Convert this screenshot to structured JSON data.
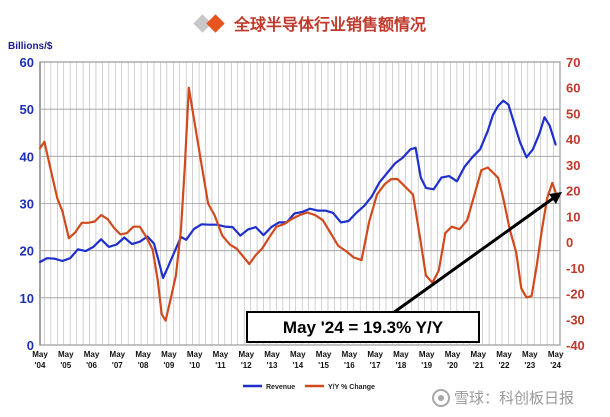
{
  "header": {
    "title": "全球半导体行业销售额情况",
    "colors": {
      "grey": "#c8c8c8",
      "orange": "#e8541f"
    }
  },
  "watermark": {
    "text": "雪球：科创板日报",
    "icon": "snowball-logo-icon"
  },
  "chart_data": {
    "type": "line",
    "title": "",
    "y_left_label": "Billions/$",
    "y_right_label": "",
    "y_left_range": [
      0,
      60
    ],
    "y_right_range": [
      -40,
      70
    ],
    "y_left_ticks": [
      "0",
      "10",
      "20",
      "30",
      "40",
      "50",
      "60"
    ],
    "y_right_ticks": [
      "-40",
      "-30",
      "-20",
      "-10",
      "0",
      "10",
      "20",
      "30",
      "40",
      "50",
      "60",
      "70"
    ],
    "x_range": [
      2004.33,
      2024.5
    ],
    "x_tick_months": [
      "May",
      "May",
      "May",
      "May",
      "May",
      "May",
      "May",
      "May",
      "May",
      "May",
      "May",
      "May",
      "May",
      "May",
      "May",
      "May",
      "May",
      "May",
      "May",
      "May",
      "May"
    ],
    "x_tick_years": [
      "'04",
      "'05",
      "'06",
      "'07",
      "'08",
      "'09",
      "'10",
      "'11",
      "'12",
      "'13",
      "'14",
      "'15",
      "'16",
      "'17",
      "'18",
      "'19",
      "'20",
      "'21",
      "'22",
      "'23",
      "'24"
    ],
    "grid": true,
    "legend_position": "bottom",
    "series": [
      {
        "name": "Revenue",
        "axis": "left",
        "color": "#1f2fcc",
        "x": [
          2004.33,
          2004.6,
          2004.9,
          2005.2,
          2005.5,
          2005.8,
          2006.1,
          2006.4,
          2006.7,
          2007.0,
          2007.3,
          2007.6,
          2007.9,
          2008.2,
          2008.5,
          2008.75,
          2008.95,
          2009.1,
          2009.3,
          2009.55,
          2009.8,
          2010.0,
          2010.3,
          2010.6,
          2010.9,
          2011.2,
          2011.5,
          2011.8,
          2012.1,
          2012.4,
          2012.7,
          2013.0,
          2013.3,
          2013.6,
          2013.9,
          2014.2,
          2014.5,
          2014.8,
          2015.1,
          2015.4,
          2015.7,
          2016.0,
          2016.3,
          2016.6,
          2016.9,
          2017.2,
          2017.5,
          2017.8,
          2018.1,
          2018.4,
          2018.7,
          2018.9,
          2019.1,
          2019.3,
          2019.6,
          2019.9,
          2020.2,
          2020.5,
          2020.8,
          2021.1,
          2021.4,
          2021.7,
          2021.9,
          2022.1,
          2022.3,
          2022.5,
          2022.7,
          2022.95,
          2023.2,
          2023.45,
          2023.7,
          2023.9,
          2024.1,
          2024.33
        ],
        "values": [
          17.6,
          18.4,
          18.3,
          17.8,
          18.4,
          20.3,
          19.9,
          20.8,
          22.4,
          20.8,
          21.3,
          22.8,
          21.4,
          21.9,
          23.0,
          21.5,
          17.5,
          14.2,
          16.6,
          19.8,
          22.9,
          22.3,
          24.6,
          25.6,
          25.5,
          25.5,
          25.1,
          25.0,
          23.2,
          24.5,
          25.0,
          23.3,
          25.0,
          26.0,
          26.0,
          27.9,
          28.2,
          28.9,
          28.5,
          28.5,
          28.0,
          26.0,
          26.3,
          28.0,
          29.5,
          31.5,
          34.5,
          36.5,
          38.5,
          39.7,
          41.5,
          41.8,
          35.5,
          33.3,
          33.0,
          35.5,
          35.8,
          34.7,
          37.8,
          39.8,
          41.5,
          45.4,
          48.8,
          50.7,
          51.8,
          51.0,
          47.4,
          43.0,
          39.8,
          41.5,
          44.8,
          48.3,
          46.5,
          42.5
        ]
      },
      {
        "name": "Y/Y % Change",
        "axis": "right",
        "color": "#d04a1e",
        "x": [
          2004.33,
          2004.5,
          2004.75,
          2005.0,
          2005.2,
          2005.45,
          2005.7,
          2005.95,
          2006.2,
          2006.45,
          2006.7,
          2006.95,
          2007.2,
          2007.45,
          2007.7,
          2007.95,
          2008.2,
          2008.45,
          2008.7,
          2008.9,
          2009.05,
          2009.2,
          2009.4,
          2009.6,
          2009.8,
          2009.95,
          2010.1,
          2010.3,
          2010.6,
          2010.85,
          2011.1,
          2011.4,
          2011.7,
          2011.95,
          2012.2,
          2012.45,
          2012.7,
          2012.95,
          2013.2,
          2013.5,
          2013.8,
          2014.1,
          2014.4,
          2014.7,
          2015.0,
          2015.3,
          2015.6,
          2015.9,
          2016.2,
          2016.5,
          2016.8,
          2017.1,
          2017.4,
          2017.7,
          2017.95,
          2018.2,
          2018.5,
          2018.8,
          2019.05,
          2019.3,
          2019.55,
          2019.8,
          2020.05,
          2020.3,
          2020.6,
          2020.9,
          2021.2,
          2021.45,
          2021.7,
          2021.9,
          2022.1,
          2022.3,
          2022.55,
          2022.8,
          2023.0,
          2023.2,
          2023.4,
          2023.6,
          2023.8,
          2024.0,
          2024.2,
          2024.33
        ],
        "values": [
          36.5,
          39.0,
          28.0,
          17.0,
          12.0,
          1.5,
          3.8,
          7.5,
          7.5,
          8.0,
          10.5,
          9.0,
          5.5,
          3.0,
          3.5,
          6.0,
          6.0,
          2.0,
          -3.0,
          -15.0,
          -28.0,
          -30.5,
          -22.0,
          -13.0,
          5.0,
          30.0,
          60.0,
          48.0,
          30.0,
          15.0,
          10.5,
          2.5,
          -1.0,
          -2.5,
          -5.5,
          -8.5,
          -5.0,
          -2.5,
          1.5,
          6.0,
          7.0,
          9.0,
          10.5,
          11.5,
          10.5,
          8.5,
          3.5,
          -1.5,
          -3.5,
          -6.0,
          -7.0,
          8.0,
          18.5,
          22.5,
          24.5,
          24.5,
          21.5,
          18.5,
          3.0,
          -13.0,
          -15.8,
          -11.0,
          3.5,
          6.0,
          5.0,
          8.5,
          19.0,
          28.0,
          29.0,
          27.0,
          25.0,
          17.0,
          5.0,
          -4.0,
          -18.0,
          -21.5,
          -21.0,
          -9.0,
          5.0,
          17.0,
          23.0,
          19.3
        ]
      }
    ],
    "annotations": [
      {
        "text": "May '24 = 19.3% Y/Y",
        "type": "arrow-callout"
      }
    ]
  }
}
